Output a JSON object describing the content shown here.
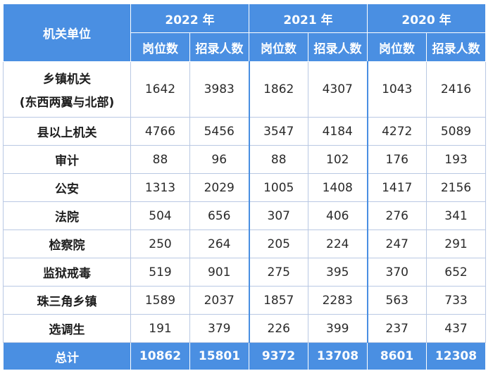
{
  "header": {
    "unit_label": "机关单位",
    "years": [
      "2022 年",
      "2021 年",
      "2020 年"
    ],
    "sub_labels": [
      "岗位数",
      "招录人数"
    ]
  },
  "rows": [
    {
      "unit_line1": "乡镇机关",
      "unit_line2": "(东西两翼与北部)",
      "values": [
        "1642",
        "3983",
        "1862",
        "4307",
        "1043",
        "2416"
      ]
    },
    {
      "unit_line1": "县以上机关",
      "values": [
        "4766",
        "5456",
        "3547",
        "4184",
        "4272",
        "5089"
      ]
    },
    {
      "unit_line1": "审计",
      "values": [
        "88",
        "96",
        "88",
        "102",
        "176",
        "193"
      ]
    },
    {
      "unit_line1": "公安",
      "values": [
        "1313",
        "2029",
        "1005",
        "1408",
        "1417",
        "2156"
      ]
    },
    {
      "unit_line1": "法院",
      "values": [
        "504",
        "656",
        "307",
        "406",
        "276",
        "341"
      ]
    },
    {
      "unit_line1": "检察院",
      "values": [
        "250",
        "264",
        "205",
        "224",
        "247",
        "291"
      ]
    },
    {
      "unit_line1": "监狱戒毒",
      "values": [
        "519",
        "901",
        "275",
        "395",
        "370",
        "652"
      ]
    },
    {
      "unit_line1": "珠三角乡镇",
      "values": [
        "1589",
        "2037",
        "1857",
        "2283",
        "563",
        "733"
      ]
    },
    {
      "unit_line1": "选调生",
      "values": [
        "191",
        "379",
        "226",
        "399",
        "237",
        "437"
      ]
    }
  ],
  "total": {
    "label": "总计",
    "values": [
      "10862",
      "15801",
      "9372",
      "13708",
      "8601",
      "12308"
    ]
  },
  "colors": {
    "header_bg": "#4a8fe2",
    "header_text": "#ffffff",
    "border": "#b9c8e3"
  }
}
